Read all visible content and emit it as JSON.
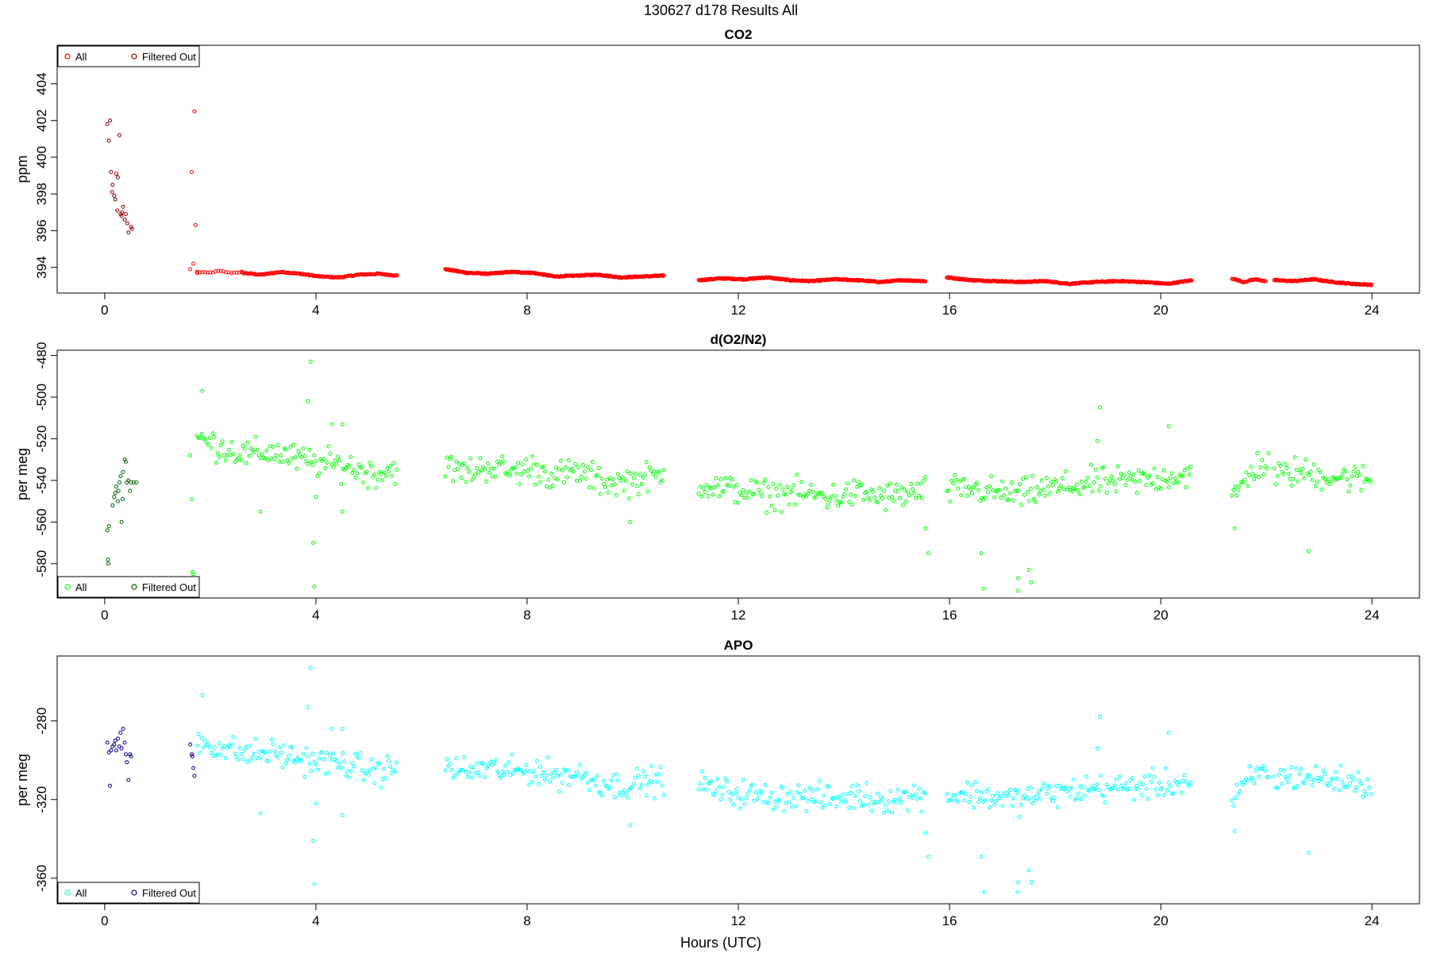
{
  "figure": {
    "title": "130627   d178   Results All",
    "xlabel": "Hours (UTC)"
  },
  "chart_data": [
    {
      "type": "scatter",
      "title": "CO2",
      "ylabel": "ppm",
      "xlim": [
        -0.9,
        24.9
      ],
      "ylim": [
        392.6,
        406.1
      ],
      "xticks": [
        0,
        4,
        8,
        12,
        16,
        20,
        24
      ],
      "yticks": [
        394,
        396,
        398,
        400,
        402,
        404
      ],
      "legend": {
        "position": "top-left",
        "entries": [
          {
            "label": "All",
            "color": "#ff0000"
          },
          {
            "label": "Filtered Out",
            "color": "#8b0000"
          }
        ]
      },
      "series": [
        {
          "name": "All",
          "color": "#ff0000",
          "points": [
            [
              1.7,
              402.5
            ],
            [
              1.65,
              399.2
            ],
            [
              1.72,
              396.3
            ],
            [
              1.62,
              393.9
            ],
            [
              1.68,
              394.2
            ],
            [
              1.75,
              393.7
            ]
          ],
          "segments": [
            {
              "x0": 1.75,
              "x1": 2.6,
              "y": [
                393.75,
                393.7,
                393.8,
                393.7,
                393.75
              ],
              "step": 0.05
            },
            {
              "x0": 2.6,
              "x1": 5.55,
              "y": [
                393.7,
                393.6,
                393.75,
                393.65,
                393.5,
                393.45,
                393.6,
                393.65,
                393.55
              ],
              "step": 0.02
            },
            {
              "x0": 6.45,
              "x1": 10.6,
              "y": [
                393.9,
                393.7,
                393.65,
                393.75,
                393.7,
                393.5,
                393.55,
                393.6,
                393.45,
                393.5,
                393.55
              ],
              "step": 0.015
            },
            {
              "x0": 11.25,
              "x1": 15.55,
              "y": [
                393.3,
                393.4,
                393.35,
                393.45,
                393.3,
                393.25,
                393.35,
                393.3,
                393.2,
                393.3,
                393.25
              ],
              "step": 0.015
            },
            {
              "x0": 15.95,
              "x1": 20.6,
              "y": [
                393.45,
                393.3,
                393.25,
                393.2,
                393.25,
                393.1,
                393.2,
                393.25,
                393.2,
                393.1,
                393.3
              ],
              "step": 0.015
            },
            {
              "x0": 21.35,
              "x1": 22.0,
              "y": [
                393.4,
                393.2,
                393.35,
                393.25
              ],
              "step": 0.02
            },
            {
              "x0": 22.15,
              "x1": 24.0,
              "y": [
                393.3,
                393.25,
                393.35,
                393.2,
                393.1,
                393.05
              ],
              "step": 0.015
            }
          ]
        },
        {
          "name": "Filtered Out",
          "color": "#8b0000",
          "points": [
            [
              0.05,
              401.8
            ],
            [
              0.1,
              402.0
            ],
            [
              0.08,
              400.9
            ],
            [
              0.12,
              399.2
            ],
            [
              0.15,
              398.5
            ],
            [
              0.18,
              397.9
            ],
            [
              0.2,
              397.7
            ],
            [
              0.22,
              399.1
            ],
            [
              0.25,
              398.9
            ],
            [
              0.28,
              401.2
            ],
            [
              0.24,
              397.1
            ],
            [
              0.3,
              396.9
            ],
            [
              0.33,
              397.0
            ],
            [
              0.35,
              397.3
            ],
            [
              0.38,
              396.6
            ],
            [
              0.4,
              396.9
            ],
            [
              0.43,
              396.4
            ],
            [
              0.45,
              395.9
            ],
            [
              0.5,
              396.2
            ],
            [
              0.52,
              396.1
            ],
            [
              0.14,
              398.1
            ],
            [
              0.32,
              396.8
            ]
          ]
        }
      ]
    },
    {
      "type": "scatter",
      "title": "d(O2/N2)",
      "ylabel": "per meg",
      "xlim": [
        -0.9,
        24.9
      ],
      "ylim": [
        -596.5,
        -477.5
      ],
      "xticks": [
        0,
        4,
        8,
        12,
        16,
        20,
        24
      ],
      "yticks": [
        -580,
        -560,
        -540,
        -520,
        -500,
        -480
      ],
      "legend": {
        "position": "bottom-left",
        "entries": [
          {
            "label": "All",
            "color": "#00ff00"
          },
          {
            "label": "Filtered Out",
            "color": "#006400"
          }
        ]
      },
      "series": [
        {
          "name": "All",
          "color": "#00ff00",
          "points": [
            [
              1.85,
              -497
            ],
            [
              3.9,
              -483
            ],
            [
              3.85,
              -502
            ],
            [
              3.95,
              -570
            ],
            [
              3.97,
              -591
            ],
            [
              4.3,
              -513
            ],
            [
              4.5,
              -513
            ],
            [
              4.0,
              -548
            ],
            [
              2.95,
              -555
            ],
            [
              4.5,
              -555
            ],
            [
              18.85,
              -505
            ],
            [
              18.8,
              -521
            ],
            [
              20.15,
              -514
            ],
            [
              15.6,
              -575
            ],
            [
              15.55,
              -563
            ],
            [
              16.6,
              -575
            ],
            [
              16.65,
              -592
            ],
            [
              17.3,
              -587
            ],
            [
              17.3,
              -593
            ],
            [
              17.5,
              -583
            ],
            [
              17.55,
              -589
            ],
            [
              21.4,
              -563
            ],
            [
              22.8,
              -574
            ],
            [
              9.95,
              -560
            ],
            [
              1.62,
              -528
            ],
            [
              1.65,
              -549
            ],
            [
              1.68,
              -585
            ],
            [
              1.66,
              -584
            ]
          ],
          "segments": [
            {
              "x0": 1.75,
              "x1": 5.55,
              "y": [
                -520,
                -524,
                -528,
                -526,
                -530,
                -532,
                -533,
                -537,
                -534
              ],
              "step": 0.03,
              "spread": 5
            },
            {
              "x0": 6.45,
              "x1": 10.6,
              "y": [
                -534,
                -536,
                -533,
                -536,
                -534,
                -538,
                -536,
                -540,
                -541,
                -539,
                -538
              ],
              "step": 0.03,
              "spread": 5
            },
            {
              "x0": 11.25,
              "x1": 15.55,
              "y": [
                -541,
                -544,
                -545,
                -547,
                -546,
                -547,
                -548,
                -546,
                -548,
                -547,
                -545
              ],
              "step": 0.03,
              "spread": 5
            },
            {
              "x0": 15.95,
              "x1": 20.6,
              "y": [
                -545,
                -544,
                -546,
                -547,
                -544,
                -543,
                -541,
                -541,
                -540,
                -538,
                -537
              ],
              "step": 0.03,
              "spread": 5
            },
            {
              "x0": 21.35,
              "x1": 22.05,
              "y": [
                -550,
                -540,
                -533,
                -532
              ],
              "step": 0.03,
              "spread": 5
            },
            {
              "x0": 22.15,
              "x1": 24.0,
              "y": [
                -538,
                -536,
                -537,
                -538,
                -539,
                -540
              ],
              "step": 0.03,
              "spread": 5
            }
          ]
        },
        {
          "name": "Filtered Out",
          "color": "#006400",
          "points": [
            [
              0.05,
              -564
            ],
            [
              0.08,
              -562
            ],
            [
              0.06,
              -578
            ],
            [
              0.07,
              -580
            ],
            [
              0.15,
              -552
            ],
            [
              0.18,
              -548
            ],
            [
              0.2,
              -546
            ],
            [
              0.22,
              -543
            ],
            [
              0.25,
              -550
            ],
            [
              0.28,
              -541
            ],
            [
              0.3,
              -538
            ],
            [
              0.32,
              -560
            ],
            [
              0.35,
              -536
            ],
            [
              0.38,
              -530
            ],
            [
              0.4,
              -531
            ],
            [
              0.42,
              -541
            ],
            [
              0.45,
              -540
            ],
            [
              0.48,
              -545
            ],
            [
              0.5,
              -541
            ],
            [
              0.55,
              -541
            ],
            [
              0.6,
              -541
            ],
            [
              0.26,
              -545
            ],
            [
              0.34,
              -549
            ]
          ]
        }
      ]
    },
    {
      "type": "scatter",
      "title": "APO",
      "ylabel": "per meg",
      "xlim": [
        -0.9,
        24.9
      ],
      "ylim": [
        -373,
        -247
      ],
      "xticks": [
        0,
        4,
        8,
        12,
        16,
        20,
        24
      ],
      "yticks": [
        -360,
        -320,
        -280
      ],
      "legend": {
        "position": "bottom-left",
        "entries": [
          {
            "label": "All",
            "color": "#00ffff"
          },
          {
            "label": "Filtered Out",
            "color": "#00008b"
          }
        ]
      },
      "series": [
        {
          "name": "All",
          "color": "#00ffff",
          "points": [
            [
              3.9,
              -253
            ],
            [
              3.85,
              -273
            ],
            [
              3.95,
              -341
            ],
            [
              3.97,
              -363
            ],
            [
              4.3,
              -284
            ],
            [
              4.5,
              -284
            ],
            [
              4.0,
              -322
            ],
            [
              2.95,
              -327
            ],
            [
              4.5,
              -328
            ],
            [
              18.85,
              -278
            ],
            [
              18.8,
              -294
            ],
            [
              20.15,
              -286
            ],
            [
              15.6,
              -349
            ],
            [
              15.55,
              -337
            ],
            [
              16.6,
              -349
            ],
            [
              16.65,
              -367
            ],
            [
              17.3,
              -362
            ],
            [
              17.3,
              -367
            ],
            [
              17.5,
              -356
            ],
            [
              17.55,
              -362
            ],
            [
              21.4,
              -336
            ],
            [
              22.8,
              -347
            ],
            [
              9.95,
              -333
            ],
            [
              1.85,
              -267
            ]
          ],
          "segments": [
            {
              "x0": 1.75,
              "x1": 5.55,
              "y": [
                -290,
                -294,
                -297,
                -296,
                -299,
                -301,
                -302,
                -306,
                -304
              ],
              "step": 0.03,
              "spread": 5
            },
            {
              "x0": 6.45,
              "x1": 10.6,
              "y": [
                -303,
                -306,
                -304,
                -306,
                -305,
                -308,
                -307,
                -311,
                -313,
                -311,
                -310
              ],
              "step": 0.03,
              "spread": 5
            },
            {
              "x0": 11.25,
              "x1": 15.55,
              "y": [
                -312,
                -316,
                -317,
                -319,
                -318,
                -319,
                -320,
                -318,
                -320,
                -319,
                -317
              ],
              "step": 0.03,
              "spread": 5
            },
            {
              "x0": 15.95,
              "x1": 20.6,
              "y": [
                -318,
                -317,
                -319,
                -320,
                -317,
                -316,
                -314,
                -314,
                -313,
                -312,
                -311
              ],
              "step": 0.03,
              "spread": 5
            },
            {
              "x0": 21.35,
              "x1": 22.05,
              "y": [
                -323,
                -313,
                -307,
                -306
              ],
              "step": 0.03,
              "spread": 5
            },
            {
              "x0": 22.15,
              "x1": 24.0,
              "y": [
                -310,
                -308,
                -309,
                -310,
                -311,
                -313
              ],
              "step": 0.03,
              "spread": 5
            }
          ]
        },
        {
          "name": "Filtered Out",
          "color": "#00008b",
          "points": [
            [
              0.05,
              -291
            ],
            [
              0.08,
              -296
            ],
            [
              0.1,
              -313
            ],
            [
              0.12,
              -295
            ],
            [
              0.15,
              -293
            ],
            [
              0.18,
              -292
            ],
            [
              0.2,
              -290
            ],
            [
              0.22,
              -295
            ],
            [
              0.25,
              -289
            ],
            [
              0.28,
              -293
            ],
            [
              0.3,
              -286
            ],
            [
              0.32,
              -294
            ],
            [
              0.35,
              -284
            ],
            [
              0.38,
              -291
            ],
            [
              0.4,
              -297
            ],
            [
              0.42,
              -301
            ],
            [
              0.45,
              -310
            ],
            [
              0.48,
              -297
            ],
            [
              0.5,
              -298
            ],
            [
              1.62,
              -292
            ],
            [
              1.65,
              -297
            ],
            [
              1.68,
              -304
            ],
            [
              1.7,
              -308
            ],
            [
              1.66,
              -298
            ]
          ]
        }
      ]
    }
  ]
}
